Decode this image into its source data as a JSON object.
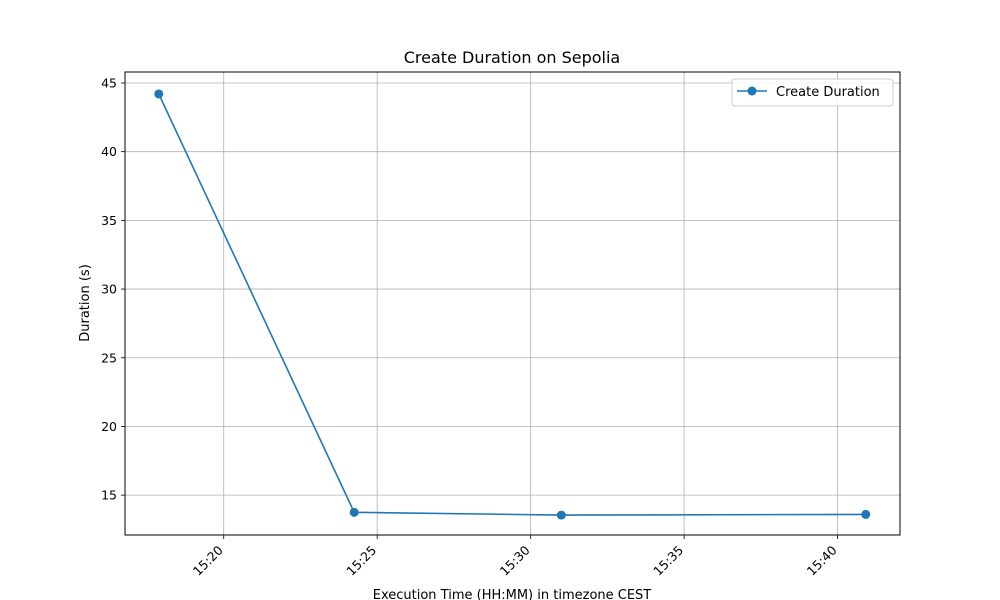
{
  "chart_data": {
    "type": "line",
    "title": "Create Duration on Sepolia",
    "xlabel": "Execution Time (HH:MM) in timezone CEST",
    "ylabel": "Duration (s)",
    "x": [
      "15:17:53",
      "15:24:15",
      "15:31:00",
      "15:40:55"
    ],
    "series": [
      {
        "name": "Create Duration",
        "values": [
          44.2,
          13.75,
          13.55,
          13.6
        ],
        "color": "#1f77b4",
        "marker": "circle"
      }
    ],
    "xticks": [
      "15:20",
      "15:25",
      "15:30",
      "15:35",
      "15:40"
    ],
    "yticks": [
      15,
      20,
      25,
      30,
      35,
      40,
      45
    ],
    "xlim": [
      "15:16:47",
      "15:42:02"
    ],
    "ylim": [
      12.1,
      45.8
    ],
    "grid": true,
    "legend_position": "top-right",
    "xtick_rotation": 45
  }
}
